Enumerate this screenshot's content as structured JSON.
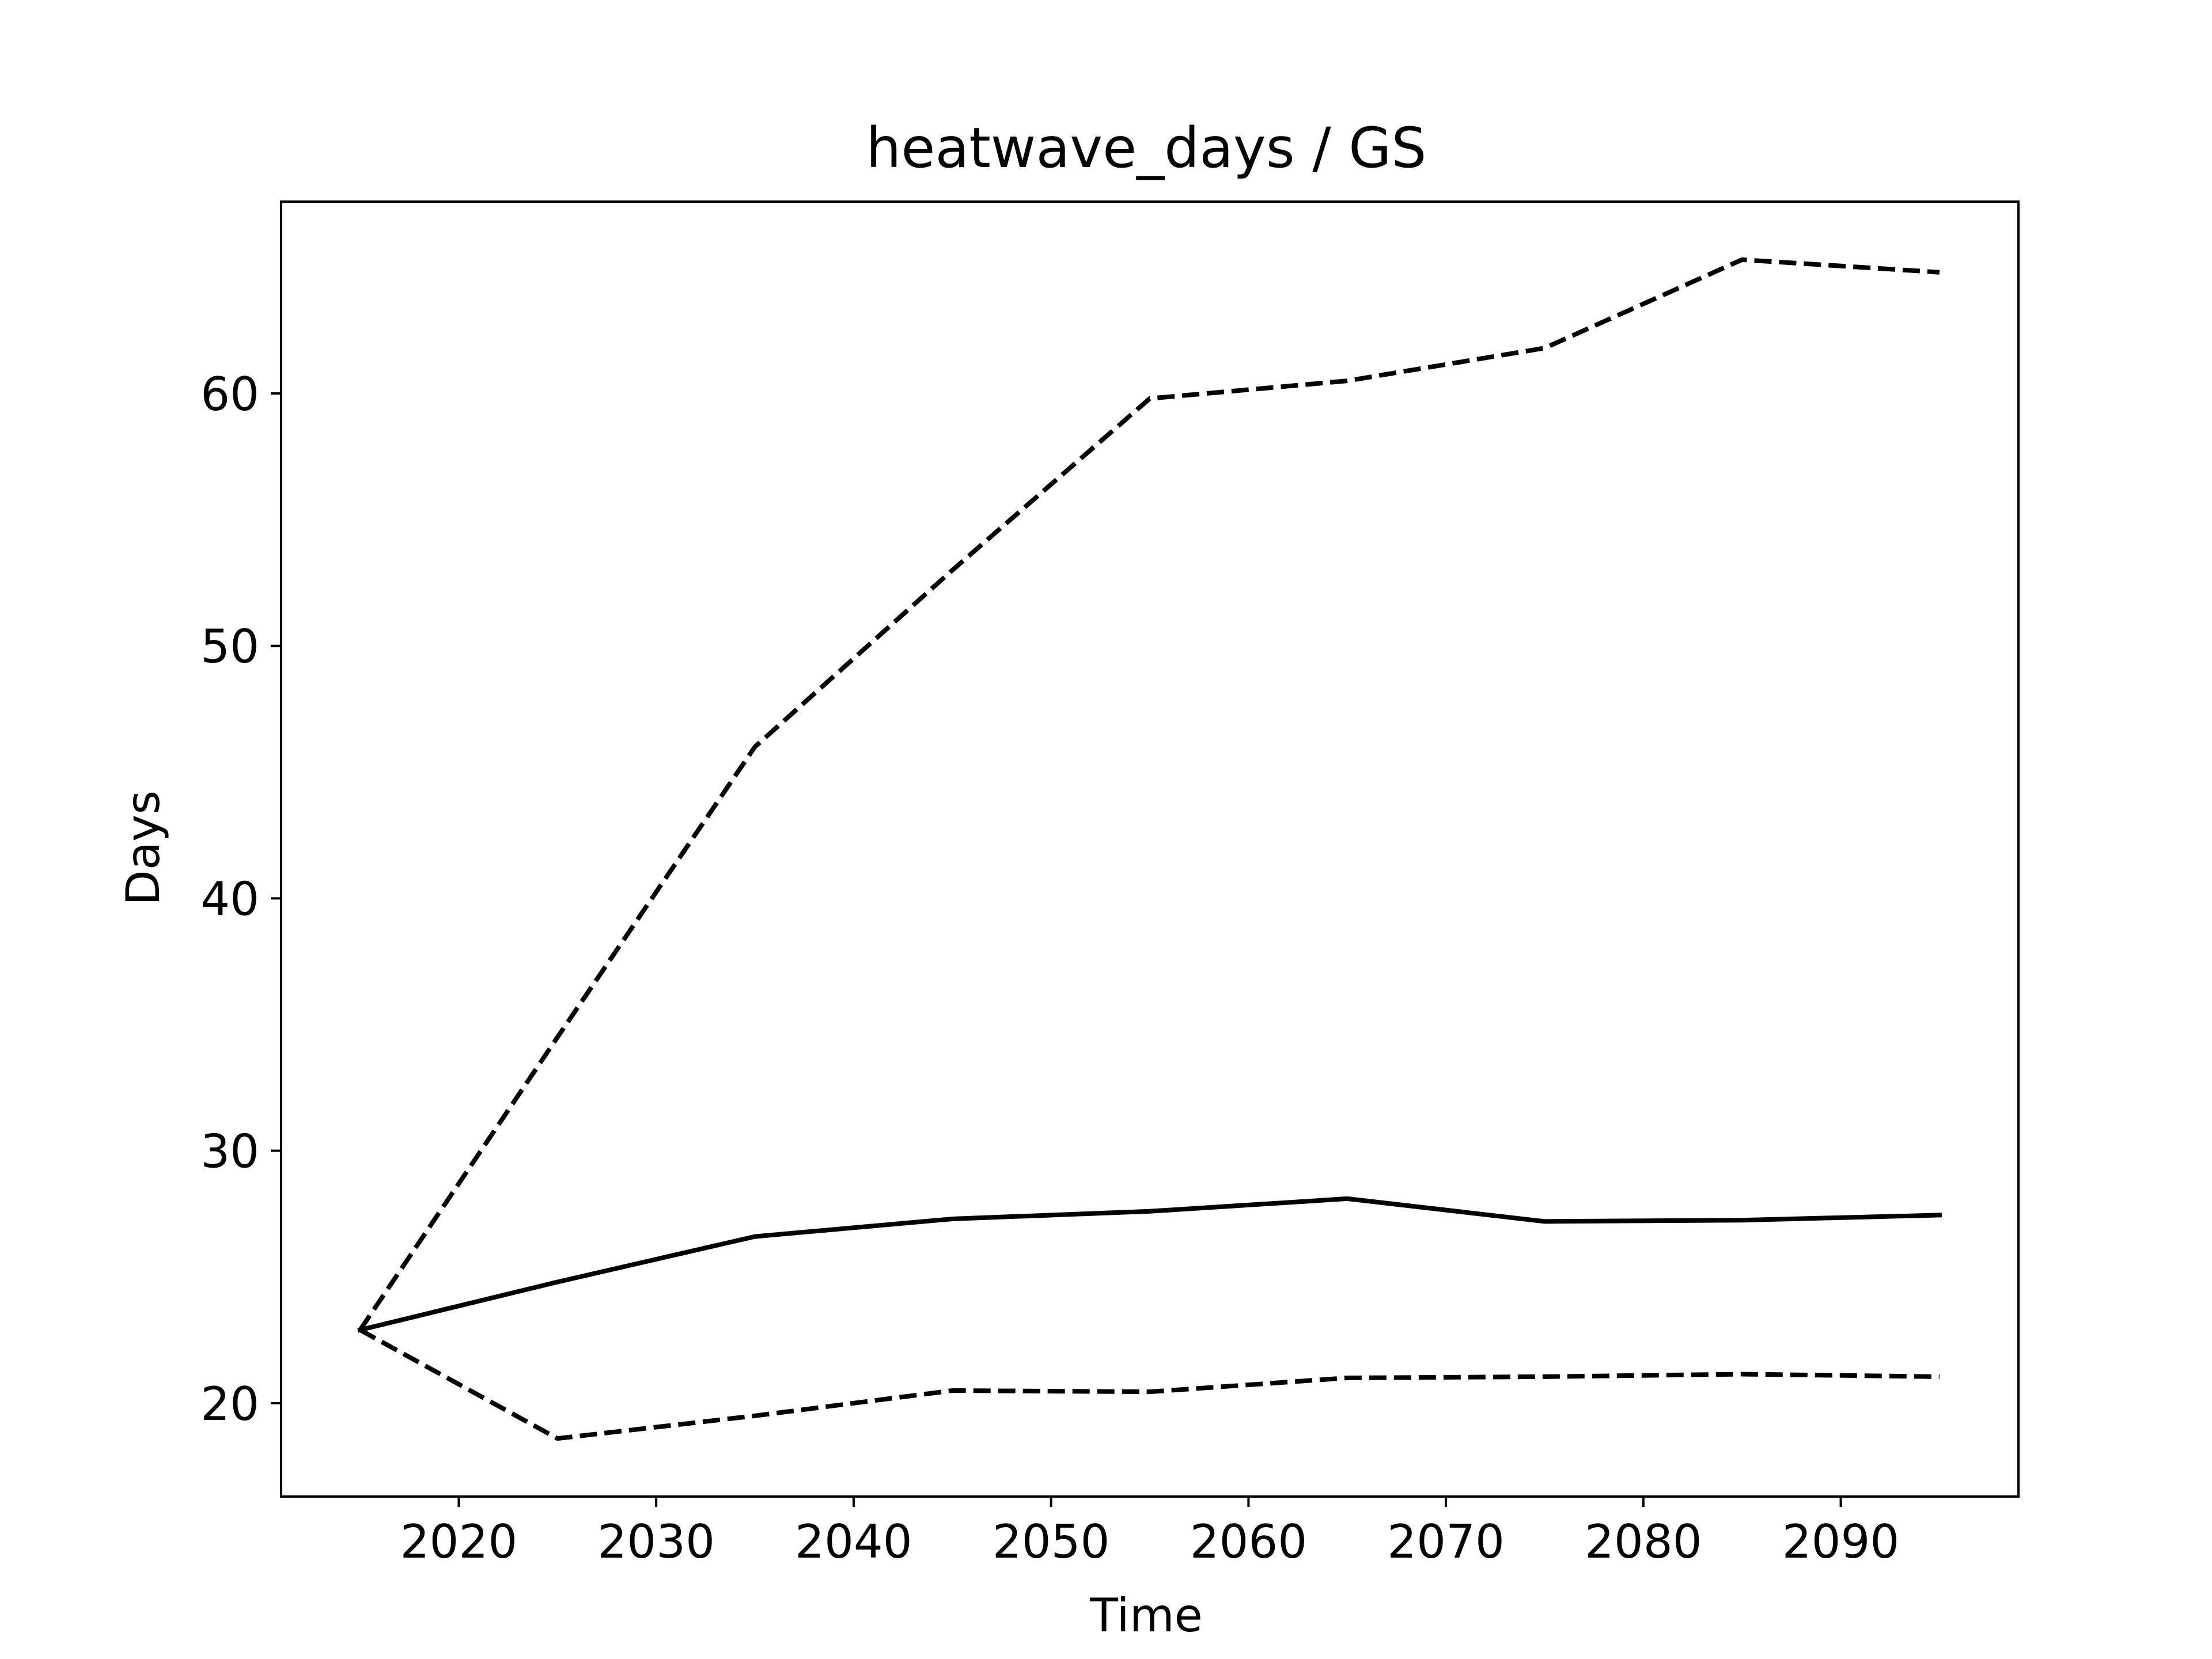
{
  "chart_data": {
    "type": "line",
    "title": "heatwave_days / GS",
    "xlabel": "Time",
    "ylabel": "Days",
    "xlim": [
      2011,
      2099
    ],
    "ylim": [
      16.3,
      67.6
    ],
    "xticks": [
      2020,
      2030,
      2040,
      2050,
      2060,
      2070,
      2080,
      2090
    ],
    "yticks": [
      20,
      30,
      40,
      50,
      60
    ],
    "xtick_labels": [
      "2020",
      "2030",
      "2040",
      "2050",
      "2060",
      "2070",
      "2080",
      "2090"
    ],
    "ytick_labels": [
      "20",
      "30",
      "40",
      "50",
      "60"
    ],
    "grid": false,
    "x": [
      2015,
      2025,
      2035,
      2045,
      2055,
      2065,
      2075,
      2085,
      2095
    ],
    "series": [
      {
        "style": "solid",
        "color": "#000000",
        "values": [
          22.9,
          24.8,
          26.6,
          27.3,
          27.6,
          28.1,
          27.2,
          27.25,
          27.45
        ]
      },
      {
        "style": "dashed",
        "color": "#000000",
        "values": [
          22.9,
          34.5,
          46.0,
          53.0,
          59.8,
          60.5,
          61.8,
          65.3,
          64.8
        ]
      },
      {
        "style": "dashed",
        "color": "#000000",
        "values": [
          22.9,
          18.6,
          19.5,
          20.5,
          20.45,
          21.0,
          21.05,
          21.15,
          21.05
        ]
      }
    ]
  }
}
